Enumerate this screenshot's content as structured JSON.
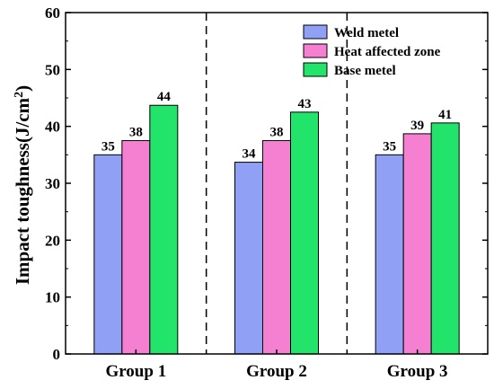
{
  "chart_data": {
    "type": "bar",
    "categories": [
      "Group 1",
      "Group 2",
      "Group 3"
    ],
    "series": [
      {
        "name": "Weld metel",
        "values": [
          35,
          33.7,
          35
        ],
        "labels": [
          "35",
          "34",
          "35"
        ],
        "color": "#8fa0f5"
      },
      {
        "name": "Heat affected zone",
        "values": [
          37.5,
          37.5,
          38.7
        ],
        "labels": [
          "38",
          "38",
          "39"
        ],
        "color": "#f57fd0"
      },
      {
        "name": "Base metel",
        "values": [
          43.7,
          42.5,
          40.6
        ],
        "labels": [
          "44",
          "43",
          "41"
        ],
        "color": "#22e46a"
      }
    ],
    "ylabel": "Impact toughness(J/cm",
    "ylabel_sup": "2",
    "ylabel_close": ")",
    "ylim": [
      0,
      60
    ],
    "yticks": [
      "0",
      "10",
      "20",
      "30",
      "40",
      "50",
      "60"
    ],
    "group_separators": "dashed",
    "legend_position": "top-right",
    "grid": false
  }
}
